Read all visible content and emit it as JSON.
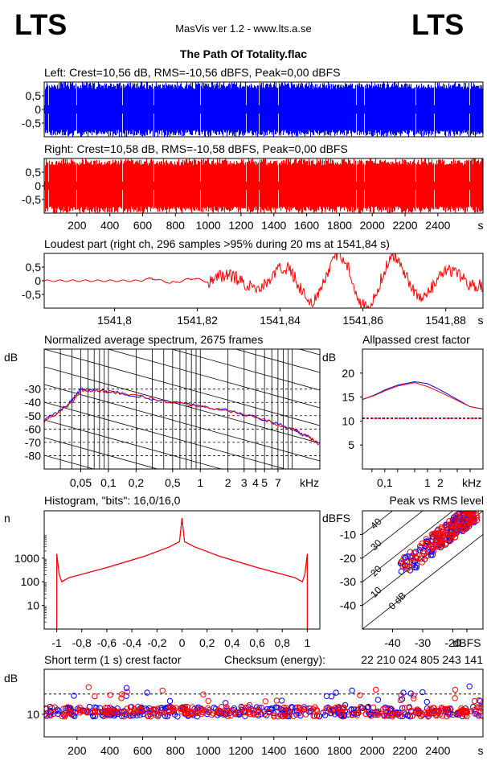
{
  "header": {
    "logo_left": "LTS",
    "logo_right": "LTS",
    "app_title": "MasVis ver 1.2 - www.lts.a.se",
    "file_title": "The Path Of Totality.flac"
  },
  "colors": {
    "left": "#0000ff",
    "right": "#ff0000",
    "grid": "#000000"
  },
  "chart_data": [
    {
      "id": "left_waveform",
      "type": "area",
      "title": "Left: Crest=10,56 dB, RMS=-10,56 dBFS, Peak=0,00 dBFS",
      "series": [
        {
          "name": "Left",
          "color": "#0000ff"
        }
      ],
      "yticks": [
        "0,5",
        "0",
        "-0,5"
      ],
      "ylim": [
        -1,
        1
      ],
      "xlim": [
        0,
        2675
      ]
    },
    {
      "id": "right_waveform",
      "type": "area",
      "title": "Right: Crest=10,58 dB, RMS=-10,58 dBFS, Peak=0,00 dBFS",
      "series": [
        {
          "name": "Right",
          "color": "#ff0000"
        }
      ],
      "yticks": [
        "0,5",
        "0",
        "-0,5"
      ],
      "xticks": [
        "200",
        "400",
        "600",
        "800",
        "1000",
        "1200",
        "1400",
        "1600",
        "1800",
        "2000",
        "2200",
        "2400"
      ],
      "xunit": "s",
      "ylim": [
        -1,
        1
      ],
      "xlim": [
        0,
        2675
      ]
    },
    {
      "id": "loudest_part",
      "type": "line",
      "title": "Loudest part (right ch, 296 samples >95% during 20 ms at 1541,84 s)",
      "yticks": [
        "0,5",
        "0",
        "-0,5"
      ],
      "xticks": [
        "1541,8",
        "1541,82",
        "1541,84",
        "1541,86",
        "1541,88"
      ],
      "xunit": "s",
      "xlim": [
        1541.783,
        1541.889
      ],
      "ylim": [
        -1,
        1
      ]
    },
    {
      "id": "spectrum",
      "type": "line",
      "title": "Normalized average spectrum, 2675 frames",
      "ylabel": "dB",
      "yticks": [
        "-30",
        "-40",
        "-50",
        "-60",
        "-70",
        "-80"
      ],
      "xticks": [
        "0,05",
        "0,1",
        "0,2",
        "0,5",
        "1",
        "2",
        "3",
        "4",
        "5",
        "7"
      ],
      "xunit": "kHz",
      "xscale": "log",
      "ylim": [
        -90,
        0
      ],
      "x": [
        0.02,
        0.03,
        0.04,
        0.05,
        0.07,
        0.1,
        0.2,
        0.5,
        1,
        2,
        5,
        10,
        15,
        20
      ],
      "series": [
        {
          "name": "Left",
          "color": "#0000ff",
          "values": [
            -53,
            -46,
            -38,
            -30,
            -31,
            -32,
            -35,
            -40,
            -43,
            -46,
            -53,
            -60,
            -66,
            -72
          ]
        },
        {
          "name": "Right",
          "color": "#ff0000",
          "values": [
            -54,
            -47,
            -40,
            -31,
            -31,
            -32,
            -35,
            -40,
            -43,
            -46,
            -53,
            -60,
            -66,
            -72
          ]
        }
      ]
    },
    {
      "id": "allpassed_crest",
      "type": "line",
      "title": "Allpassed crest factor",
      "ylabel": "dB",
      "yticks": [
        "20",
        "15",
        "10",
        "5"
      ],
      "xticks": [
        "0,1",
        "1",
        "2"
      ],
      "xunit": "kHz",
      "xscale": "log",
      "ylim": [
        0,
        25
      ],
      "reference": 10.57,
      "x": [
        0.03,
        0.06,
        0.1,
        0.2,
        0.5,
        1,
        2,
        5,
        10,
        20
      ],
      "series": [
        {
          "name": "Left",
          "color": "#0000ff",
          "values": [
            14.5,
            15.5,
            16.5,
            17.5,
            18.2,
            17.8,
            16.5,
            14.5,
            13,
            12.5
          ]
        },
        {
          "name": "Right",
          "color": "#ff0000",
          "values": [
            14.5,
            15.4,
            16.3,
            17.3,
            18,
            17.2,
            16,
            14.3,
            13,
            12.5
          ]
        }
      ]
    },
    {
      "id": "histogram",
      "type": "line",
      "title": "Histogram, \"bits\": 16,0/16,0",
      "ylabel": "n",
      "yscale": "log",
      "yticks": [
        "1000",
        "100",
        "10"
      ],
      "xticks": [
        "-1",
        "-0,8",
        "-0,6",
        "-0,4",
        "-0,2",
        "0",
        "0,2",
        "0,4",
        "0,6",
        "0,8",
        "1"
      ],
      "x": [
        -1,
        -0.98,
        -0.96,
        -0.9,
        -0.6,
        -0.3,
        -0.1,
        -0.02,
        0,
        0.02,
        0.1,
        0.3,
        0.6,
        0.9,
        0.96,
        0.98,
        1
      ],
      "values": [
        1500,
        200,
        100,
        150,
        400,
        1200,
        3000,
        5000,
        50000,
        5000,
        3000,
        1200,
        400,
        150,
        100,
        200,
        1500
      ]
    },
    {
      "id": "peak_vs_rms",
      "type": "scatter",
      "title": "Peak vs RMS level",
      "ylabel": "dBFS",
      "yticks": [
        "-10",
        "-20",
        "-30",
        "-40"
      ],
      "xticks": [
        "-40",
        "-30",
        "-20",
        "dBFS"
      ],
      "diagonal_labels": [
        "40",
        "30",
        "20",
        "10",
        "0 dB"
      ],
      "xlim": [
        -50,
        -10
      ],
      "ylim": [
        -50,
        0
      ],
      "series": [
        {
          "name": "Left",
          "color": "#0000ff"
        },
        {
          "name": "Right",
          "color": "#ff0000"
        }
      ]
    },
    {
      "id": "short_term_crest",
      "type": "scatter",
      "title": "Short term (1 s) crest factor",
      "checksum_label": "Checksum (energy):",
      "checksum_value": "22 210 024 805 243 141",
      "ylabel": "dB",
      "yticks": [
        "10"
      ],
      "xticks": [
        "200",
        "400",
        "600",
        "800",
        "1000",
        "1200",
        "1400",
        "1600",
        "1800",
        "2000",
        "2200",
        "2400"
      ],
      "xunit": "s",
      "reference": 14.5,
      "xlim": [
        0,
        2675
      ],
      "ylim": [
        5,
        20
      ]
    }
  ]
}
